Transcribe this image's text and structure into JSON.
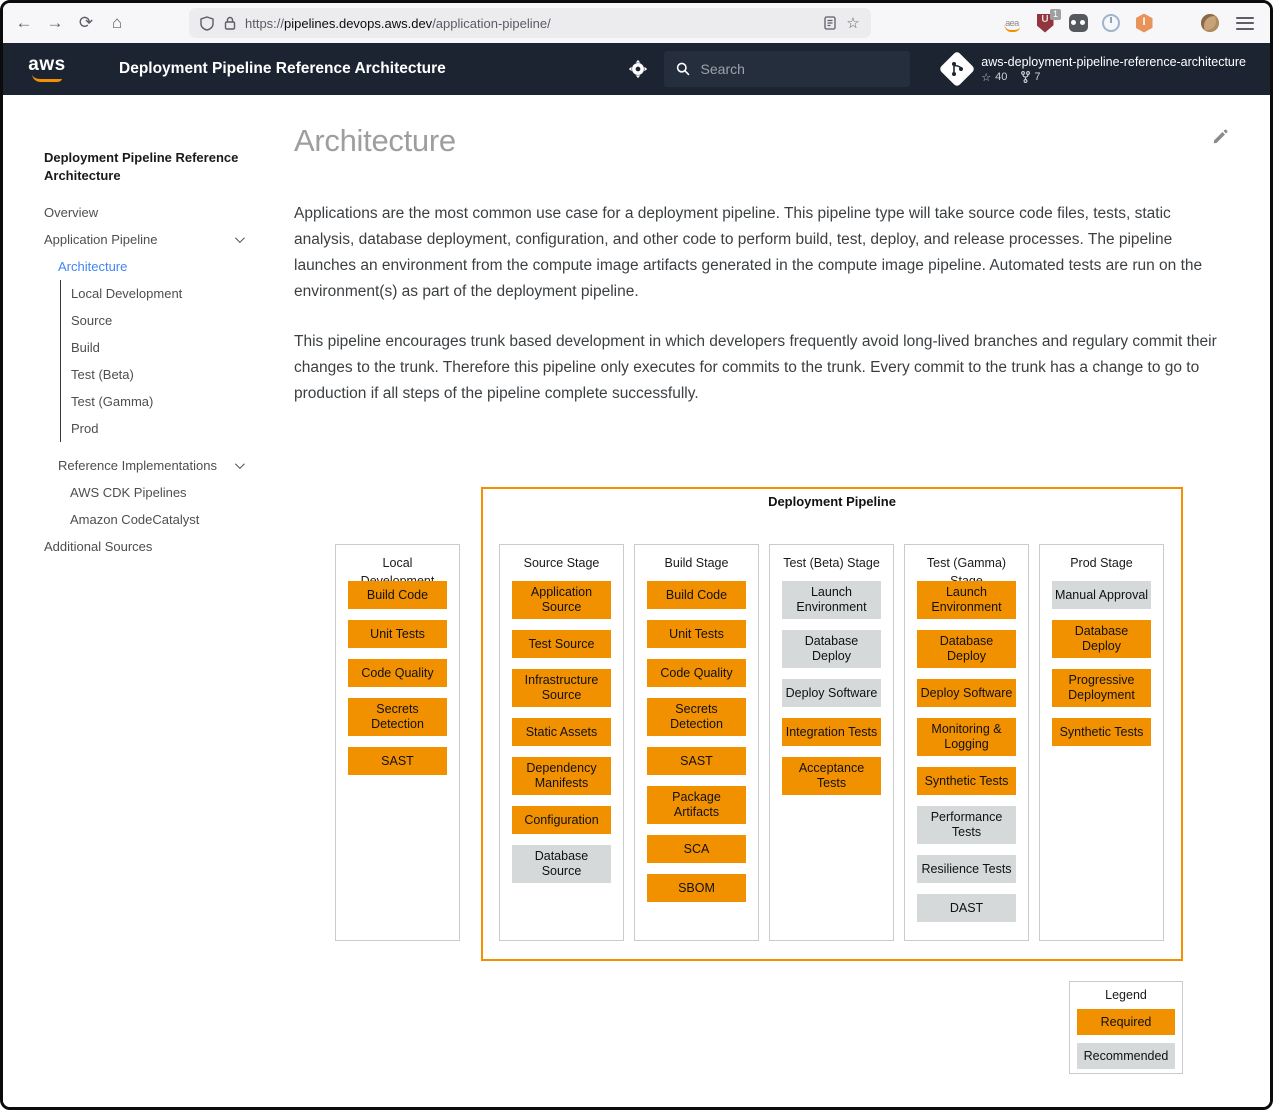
{
  "browser": {
    "url_protocol": "https://",
    "url_host": "pipelines.devops.aws.dev",
    "url_path": "/application-pipeline/",
    "ublock_badge": "1"
  },
  "header": {
    "logo_text": "aws",
    "title": "Deployment Pipeline Reference Architecture",
    "search_placeholder": "Search",
    "repo": {
      "name": "aws-deployment-pipeline-reference-architecture",
      "stars": "40",
      "forks": "7"
    }
  },
  "sidebar": {
    "title": "Deployment Pipeline Reference Architecture",
    "items": [
      {
        "label": "Overview",
        "level": 0
      },
      {
        "label": "Application Pipeline",
        "level": 0,
        "chevron": true
      },
      {
        "label": "Architecture",
        "level": 1,
        "active": true
      },
      {
        "label": "Local Development",
        "level": 2,
        "bar": true
      },
      {
        "label": "Source",
        "level": 2,
        "bar": true
      },
      {
        "label": "Build",
        "level": 2,
        "bar": true
      },
      {
        "label": "Test (Beta)",
        "level": 2,
        "bar": true
      },
      {
        "label": "Test (Gamma)",
        "level": 2,
        "bar": true
      },
      {
        "label": "Prod",
        "level": 2,
        "bar": true
      },
      {
        "label": "Reference Implementations",
        "level": 1,
        "chevron": true,
        "gap": true
      },
      {
        "label": "AWS CDK Pipelines",
        "level": 2
      },
      {
        "label": "Amazon CodeCatalyst",
        "level": 2
      },
      {
        "label": "Additional Sources",
        "level": 0
      }
    ]
  },
  "main": {
    "heading": "Architecture",
    "paragraphs": [
      "Applications are the most common use case for a deployment pipeline. This pipeline type will take source code files, tests, static analysis, database deployment, configuration, and other code to perform build, test, deploy, and release processes. The pipeline launches an environment from the compute image artifacts generated in the compute image pipeline. Automated tests are run on the environment(s) as part of the deployment pipeline.",
      "This pipeline encourages trunk based development in which developers frequently avoid long-lived branches and regulary commit their changes to the trunk. Therefore this pipeline only executes for commits to the trunk. Every commit to the trunk has a change to go to production if all steps of the pipeline complete successfully."
    ]
  },
  "diagram": {
    "pipeline_label": "Deployment Pipeline",
    "columns": [
      {
        "title": "Local Development",
        "in_pipeline": false,
        "blocks": [
          {
            "label": "Build Code",
            "type": "required"
          },
          {
            "label": "Unit Tests",
            "type": "required"
          },
          {
            "label": "Code Quality",
            "type": "required"
          },
          {
            "label": "Secrets Detection",
            "type": "required"
          },
          {
            "label": "SAST",
            "type": "required"
          }
        ]
      },
      {
        "title": "Source Stage",
        "in_pipeline": true,
        "blocks": [
          {
            "label": "Application Source",
            "type": "required"
          },
          {
            "label": "Test Source",
            "type": "required"
          },
          {
            "label": "Infrastructure Source",
            "type": "required"
          },
          {
            "label": "Static Assets",
            "type": "required"
          },
          {
            "label": "Dependency Manifests",
            "type": "required"
          },
          {
            "label": "Configuration",
            "type": "required"
          },
          {
            "label": "Database Source",
            "type": "recommended"
          }
        ]
      },
      {
        "title": "Build Stage",
        "in_pipeline": true,
        "blocks": [
          {
            "label": "Build Code",
            "type": "required"
          },
          {
            "label": "Unit Tests",
            "type": "required"
          },
          {
            "label": "Code Quality",
            "type": "required"
          },
          {
            "label": "Secrets Detection",
            "type": "required"
          },
          {
            "label": "SAST",
            "type": "required"
          },
          {
            "label": "Package Artifacts",
            "type": "required"
          },
          {
            "label": "SCA",
            "type": "required"
          },
          {
            "label": "SBOM",
            "type": "required"
          }
        ]
      },
      {
        "title": "Test (Beta) Stage",
        "in_pipeline": true,
        "blocks": [
          {
            "label": "Launch Environment",
            "type": "recommended"
          },
          {
            "label": "Database Deploy",
            "type": "recommended"
          },
          {
            "label": "Deploy Software",
            "type": "recommended"
          },
          {
            "label": "Integration Tests",
            "type": "required"
          },
          {
            "label": "Acceptance Tests",
            "type": "required"
          }
        ]
      },
      {
        "title": "Test (Gamma) Stage",
        "in_pipeline": true,
        "blocks": [
          {
            "label": "Launch Environment",
            "type": "required"
          },
          {
            "label": "Database Deploy",
            "type": "required"
          },
          {
            "label": "Deploy Software",
            "type": "required"
          },
          {
            "label": "Monitoring & Logging",
            "type": "required"
          },
          {
            "label": "Synthetic Tests",
            "type": "required"
          },
          {
            "label": "Performance Tests",
            "type": "recommended"
          },
          {
            "label": "Resilience Tests",
            "type": "recommended"
          },
          {
            "label": "DAST",
            "type": "recommended"
          }
        ]
      },
      {
        "title": "Prod Stage",
        "in_pipeline": true,
        "blocks": [
          {
            "label": "Manual Approval",
            "type": "recommended"
          },
          {
            "label": "Database Deploy",
            "type": "required"
          },
          {
            "label": "Progressive Deployment",
            "type": "required"
          },
          {
            "label": "Synthetic Tests",
            "type": "required"
          }
        ]
      }
    ],
    "legend": {
      "title": "Legend",
      "items": [
        {
          "label": "Required",
          "type": "required"
        },
        {
          "label": "Recommended",
          "type": "recommended"
        }
      ]
    }
  },
  "colors": {
    "required": "#F29100",
    "recommended": "#D5D9D9",
    "accent_link": "#4285F4",
    "header_bg": "#1B2430"
  }
}
